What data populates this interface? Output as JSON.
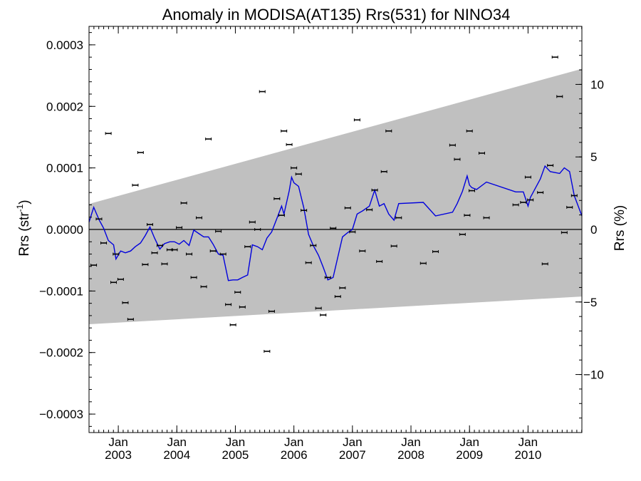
{
  "chart_data": {
    "type": "line",
    "title": "Anomaly in MODISA(AT135) Rrs(531) for NINO34",
    "ylabel_left": "Rrs (str",
    "ylabel_left_sup": "-1",
    "ylabel_left_close": ")",
    "ylabel_right": "Rrs (%)",
    "xlim": [
      2002.5,
      2010.92
    ],
    "ylim_left": [
      -0.00033,
      0.00033
    ],
    "ylim_right": [
      -14,
      14
    ],
    "left_ticks": [
      {
        "v": 0.0003,
        "label": "0.0003"
      },
      {
        "v": 0.0002,
        "label": "0.0002"
      },
      {
        "v": 0.0001,
        "label": "0.0001"
      },
      {
        "v": 0.0,
        "label": "0.0000"
      },
      {
        "v": -0.0001,
        "label": "−0.0001"
      },
      {
        "v": -0.0002,
        "label": "−0.0002"
      },
      {
        "v": -0.0003,
        "label": "−0.0003"
      }
    ],
    "right_ticks": [
      {
        "v": 10,
        "label": "10"
      },
      {
        "v": 5,
        "label": "5"
      },
      {
        "v": 0,
        "label": "0"
      },
      {
        "v": -5,
        "label": "−5"
      },
      {
        "v": -10,
        "label": "−10"
      }
    ],
    "x_ticks": [
      {
        "v": 2003,
        "month": "Jan",
        "year": "2003"
      },
      {
        "v": 2004,
        "month": "Jan",
        "year": "2004"
      },
      {
        "v": 2005,
        "month": "Jan",
        "year": "2005"
      },
      {
        "v": 2006,
        "month": "Jan",
        "year": "2006"
      },
      {
        "v": 2007,
        "month": "Jan",
        "year": "2007"
      },
      {
        "v": 2008,
        "month": "Jan",
        "year": "2008"
      },
      {
        "v": 2009,
        "month": "Jan",
        "year": "2009"
      },
      {
        "v": 2010,
        "month": "Jan",
        "year": "2010"
      }
    ],
    "band": {
      "upper": [
        [
          2002.5,
          4.15e-05
        ],
        [
          2010.92,
          0.000261
        ]
      ],
      "lower": [
        [
          2002.5,
          -0.000154
        ],
        [
          2010.92,
          -0.000109
        ]
      ]
    },
    "colors": {
      "band": "#c0c0c0",
      "line": "#0000dd",
      "points": "#000000"
    },
    "series": [
      {
        "kind": "points_with_errorbars",
        "points": [
          [
            2002.58,
            -5.8e-05
          ],
          [
            2002.67,
            1.7e-05
          ],
          [
            2002.75,
            -2.2e-05
          ],
          [
            2002.83,
            0.000156
          ],
          [
            2002.92,
            -8.6e-05
          ],
          [
            2002.96,
            -4e-05
          ],
          [
            2003.04,
            -8.1e-05
          ],
          [
            2003.12,
            -0.000119
          ],
          [
            2003.21,
            -0.000146
          ],
          [
            2003.29,
            7.2e-05
          ],
          [
            2003.38,
            0.000125
          ],
          [
            2003.46,
            -5.7e-05
          ],
          [
            2003.54,
            8e-06
          ],
          [
            2003.62,
            -3.8e-05
          ],
          [
            2003.71,
            -2.6e-05
          ],
          [
            2003.79,
            -5.6e-05
          ],
          [
            2003.88,
            -3.3e-05
          ],
          [
            2003.96,
            -3.3e-05
          ],
          [
            2004.04,
            3e-06
          ],
          [
            2004.12,
            4.3e-05
          ],
          [
            2004.21,
            -4e-05
          ],
          [
            2004.29,
            -7.8e-05
          ],
          [
            2004.38,
            1.9e-05
          ],
          [
            2004.46,
            -9.3e-05
          ],
          [
            2004.54,
            0.000147
          ],
          [
            2004.62,
            -3.5e-05
          ],
          [
            2004.71,
            -3e-06
          ],
          [
            2004.79,
            -4e-05
          ],
          [
            2004.88,
            -0.000122
          ],
          [
            2004.96,
            -0.000155
          ],
          [
            2005.04,
            -0.000102
          ],
          [
            2005.12,
            -0.000126
          ],
          [
            2005.21,
            -2.8e-05
          ],
          [
            2005.29,
            1.2e-05
          ],
          [
            2005.38,
            0.0
          ],
          [
            2005.46,
            0.000224
          ],
          [
            2005.54,
            -0.000198
          ],
          [
            2005.62,
            -0.000133
          ],
          [
            2005.71,
            5e-05
          ],
          [
            2005.79,
            2.3e-05
          ],
          [
            2005.83,
            0.00016
          ],
          [
            2005.92,
            0.000138
          ],
          [
            2006.0,
            0.0001
          ],
          [
            2006.08,
            9e-05
          ],
          [
            2006.17,
            3.1e-05
          ],
          [
            2006.25,
            -5.4e-05
          ],
          [
            2006.33,
            -2.6e-05
          ],
          [
            2006.42,
            -0.000128
          ],
          [
            2006.5,
            -0.000139
          ],
          [
            2006.58,
            -7.8e-05
          ],
          [
            2006.67,
            2e-06
          ],
          [
            2006.75,
            -0.000109
          ],
          [
            2006.83,
            -9.5e-05
          ],
          [
            2006.92,
            3.5e-05
          ],
          [
            2007.0,
            -4e-06
          ],
          [
            2007.08,
            0.000178
          ],
          [
            2007.17,
            -3.5e-05
          ],
          [
            2007.29,
            3.2e-05
          ],
          [
            2007.38,
            6.4e-05
          ],
          [
            2007.46,
            -5.2e-05
          ],
          [
            2007.54,
            9.4e-05
          ],
          [
            2007.62,
            0.00016
          ],
          [
            2007.71,
            -2.7e-05
          ],
          [
            2007.79,
            1.9e-05
          ],
          [
            2008.21,
            -5.5e-05
          ],
          [
            2008.42,
            -3.6e-05
          ],
          [
            2008.71,
            0.000137
          ],
          [
            2008.79,
            0.000114
          ],
          [
            2008.88,
            -8e-06
          ],
          [
            2008.96,
            2.3e-05
          ],
          [
            2009.0,
            0.00016
          ],
          [
            2009.04,
            6.3e-05
          ],
          [
            2009.21,
            0.000124
          ],
          [
            2009.29,
            1.9e-05
          ],
          [
            2009.79,
            4e-05
          ],
          [
            2009.92,
            4.4e-05
          ],
          [
            2010.0,
            8.5e-05
          ],
          [
            2010.04,
            4.8e-05
          ],
          [
            2010.21,
            6e-05
          ],
          [
            2010.29,
            -5.6e-05
          ],
          [
            2010.38,
            0.000104
          ],
          [
            2010.46,
            0.00028
          ],
          [
            2010.54,
            0.000216
          ],
          [
            2010.62,
            -5e-06
          ],
          [
            2010.71,
            3.6e-05
          ],
          [
            2010.79,
            5.5e-05
          ]
        ]
      },
      {
        "kind": "line",
        "points": [
          [
            2002.5,
            1.2e-05
          ],
          [
            2002.58,
            3.6e-05
          ],
          [
            2002.67,
            1.6e-05
          ],
          [
            2002.75,
            2e-06
          ],
          [
            2002.83,
            -1.8e-05
          ],
          [
            2002.92,
            -2.5e-05
          ],
          [
            2002.96,
            -4.8e-05
          ],
          [
            2003.04,
            -3.5e-05
          ],
          [
            2003.12,
            -3.8e-05
          ],
          [
            2003.21,
            -3.5e-05
          ],
          [
            2003.29,
            -2.8e-05
          ],
          [
            2003.38,
            -2.2e-05
          ],
          [
            2003.46,
            -1e-05
          ],
          [
            2003.54,
            4e-06
          ],
          [
            2003.62,
            -1.4e-05
          ],
          [
            2003.71,
            -3.2e-05
          ],
          [
            2003.79,
            -2.3e-05
          ],
          [
            2003.88,
            -2e-05
          ],
          [
            2003.96,
            -2e-05
          ],
          [
            2004.04,
            -2.4e-05
          ],
          [
            2004.12,
            -1.8e-05
          ],
          [
            2004.21,
            -2.6e-05
          ],
          [
            2004.29,
            -1e-06
          ],
          [
            2004.38,
            -7e-06
          ],
          [
            2004.46,
            -1.2e-05
          ],
          [
            2004.54,
            -1.2e-05
          ],
          [
            2004.62,
            -2.4e-05
          ],
          [
            2004.71,
            -4e-05
          ],
          [
            2004.79,
            -4.2e-05
          ],
          [
            2004.88,
            -8.3e-05
          ],
          [
            2004.96,
            -8.2e-05
          ],
          [
            2005.04,
            -8.2e-05
          ],
          [
            2005.12,
            -7.8e-05
          ],
          [
            2005.21,
            -7.4e-05
          ],
          [
            2005.29,
            -2.5e-05
          ],
          [
            2005.38,
            -2.8e-05
          ],
          [
            2005.46,
            -3.3e-05
          ],
          [
            2005.54,
            -1.4e-05
          ],
          [
            2005.62,
            -4e-06
          ],
          [
            2005.71,
            1.8e-05
          ],
          [
            2005.79,
            3.8e-05
          ],
          [
            2005.83,
            2.5e-05
          ],
          [
            2005.92,
            6.3e-05
          ],
          [
            2005.96,
            8.5e-05
          ],
          [
            2006.0,
            7.6e-05
          ],
          [
            2006.08,
            7e-05
          ],
          [
            2006.17,
            3.5e-05
          ],
          [
            2006.25,
            -8e-06
          ],
          [
            2006.33,
            -2.6e-05
          ],
          [
            2006.42,
            -4.2e-05
          ],
          [
            2006.5,
            -6.1e-05
          ],
          [
            2006.58,
            -8.2e-05
          ],
          [
            2006.67,
            -7.8e-05
          ],
          [
            2006.75,
            -4.5e-05
          ],
          [
            2006.83,
            -1.2e-05
          ],
          [
            2006.92,
            -5e-06
          ],
          [
            2007.0,
            0.0
          ],
          [
            2007.08,
            2.5e-05
          ],
          [
            2007.17,
            3e-05
          ],
          [
            2007.29,
            3.8e-05
          ],
          [
            2007.38,
            6.4e-05
          ],
          [
            2007.46,
            3.8e-05
          ],
          [
            2007.54,
            4.2e-05
          ],
          [
            2007.62,
            2.5e-05
          ],
          [
            2007.71,
            1.5e-05
          ],
          [
            2007.79,
            4.2e-05
          ],
          [
            2008.21,
            4.4e-05
          ],
          [
            2008.42,
            2.2e-05
          ],
          [
            2008.71,
            2.8e-05
          ],
          [
            2008.79,
            4.2e-05
          ],
          [
            2008.88,
            6.2e-05
          ],
          [
            2008.96,
            8.7e-05
          ],
          [
            2009.0,
            7.2e-05
          ],
          [
            2009.04,
            6.8e-05
          ],
          [
            2009.12,
            6.5e-05
          ],
          [
            2009.29,
            7.7e-05
          ],
          [
            2009.79,
            6.1e-05
          ],
          [
            2009.92,
            6.1e-05
          ],
          [
            2010.0,
            3.8e-05
          ],
          [
            2010.04,
            5.2e-05
          ],
          [
            2010.21,
            8.2e-05
          ],
          [
            2010.29,
            0.000103
          ],
          [
            2010.38,
            9.4e-05
          ],
          [
            2010.54,
            9.1e-05
          ],
          [
            2010.62,
            0.0001
          ],
          [
            2010.71,
            9.4e-05
          ],
          [
            2010.79,
            5.5e-05
          ],
          [
            2010.92,
            2.2e-05
          ]
        ]
      }
    ]
  }
}
